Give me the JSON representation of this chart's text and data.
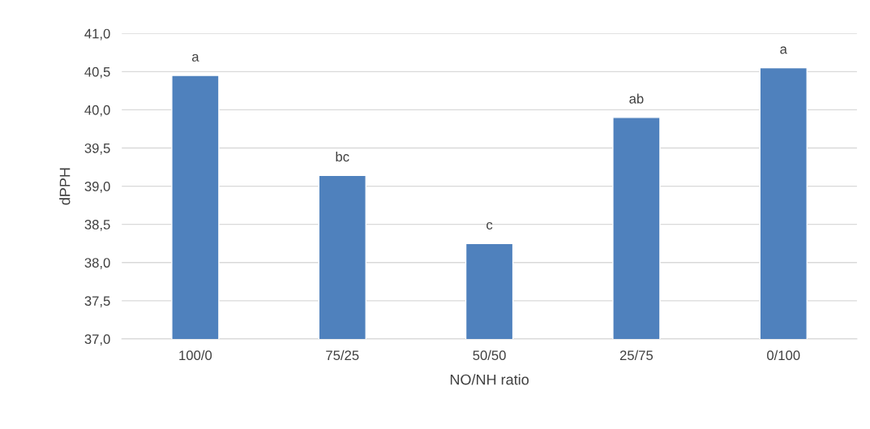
{
  "chart_data": {
    "type": "bar",
    "xlabel": "NO/NH ratio",
    "ylabel": "dPPH",
    "categories": [
      "100/0",
      "75/25",
      "50/50",
      "25/75",
      "0/100"
    ],
    "values": [
      40.45,
      39.14,
      38.25,
      39.9,
      40.55
    ],
    "color": "#4f81bd",
    "ylim": [
      37,
      41
    ],
    "yticks": [
      {
        "value": 37,
        "label": "37,0"
      },
      {
        "value": 37.5,
        "label": "37,5"
      },
      {
        "value": 38,
        "label": "38,0"
      },
      {
        "value": 38.5,
        "label": "38,5"
      },
      {
        "value": 39,
        "label": "39,0"
      },
      {
        "value": 39.5,
        "label": "39,5"
      },
      {
        "value": 40,
        "label": "40,0"
      },
      {
        "value": 40.5,
        "label": "40,5"
      },
      {
        "value": 41,
        "label": "41,0"
      }
    ],
    "grid": "y",
    "annotations": [
      {
        "text": "a",
        "x": "100/0",
        "y": 40.45
      },
      {
        "text": "bc",
        "x": "75/25",
        "y": 39.14
      },
      {
        "text": "c",
        "x": "50/50",
        "y": 38.25
      },
      {
        "text": "ab",
        "x": "25/75",
        "y": 39.9
      },
      {
        "text": "a",
        "x": "0/100",
        "y": 40.55
      }
    ]
  }
}
